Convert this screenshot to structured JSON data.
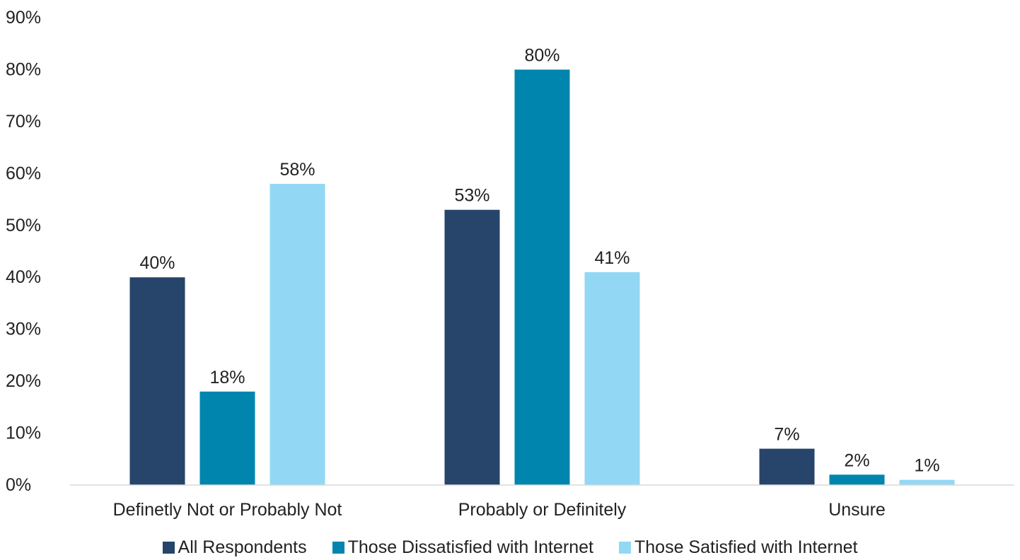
{
  "chart_data": {
    "type": "bar",
    "categories": [
      "Definetly Not or Probably Not",
      "Probably or Definitely",
      "Unsure"
    ],
    "series": [
      {
        "name": "All Respondents",
        "values": [
          40,
          53,
          7
        ],
        "color": "#27446A",
        "labels": [
          "40%",
          "53%",
          "7%"
        ]
      },
      {
        "name": "Those Dissatisfied with Internet",
        "values": [
          18,
          80,
          2
        ],
        "color": "#0085AE",
        "labels": [
          "18%",
          "80%",
          "2%"
        ]
      },
      {
        "name": "Those Satisfied with Internet",
        "values": [
          58,
          41,
          1
        ],
        "color": "#92D8F5",
        "labels": [
          "58%",
          "41%",
          "1%"
        ]
      }
    ],
    "y_ticks": [
      "0%",
      "10%",
      "20%",
      "30%",
      "40%",
      "50%",
      "60%",
      "70%",
      "80%",
      "90%"
    ],
    "ylim": [
      0,
      90
    ],
    "title": "",
    "xlabel": "",
    "ylabel": "",
    "grid": false,
    "legend_position": "bottom"
  }
}
